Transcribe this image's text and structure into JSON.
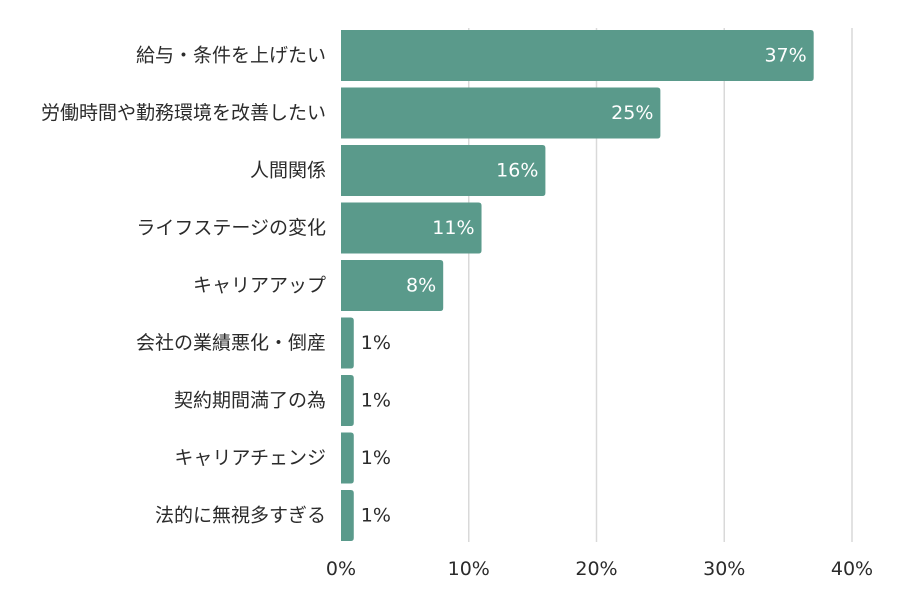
{
  "chart_data": {
    "type": "bar",
    "orientation": "horizontal",
    "title": "",
    "xlabel": "",
    "ylabel": "",
    "categories": [
      "給与・条件を上げたい",
      "労働時間や勤務環境を改善したい",
      "人間関係",
      "ライフステージの変化",
      "キャリアアップ",
      "会社の業績悪化・倒産",
      "契約期間満了の為",
      "キャリアチェンジ",
      "法的に無視多すぎる"
    ],
    "values": [
      37,
      25,
      16,
      11,
      8,
      1,
      1,
      1,
      1
    ],
    "value_labels": [
      "37%",
      "25%",
      "16%",
      "11%",
      "8%",
      "1%",
      "1%",
      "1%",
      "1%"
    ],
    "xlim": [
      0,
      40
    ],
    "ticks": [
      0,
      10,
      20,
      30,
      40
    ],
    "tick_labels": [
      "0%",
      "10%",
      "20%",
      "30%",
      "40%"
    ],
    "grid": true,
    "legend": "none",
    "bar_color": "#5a9a8b"
  }
}
